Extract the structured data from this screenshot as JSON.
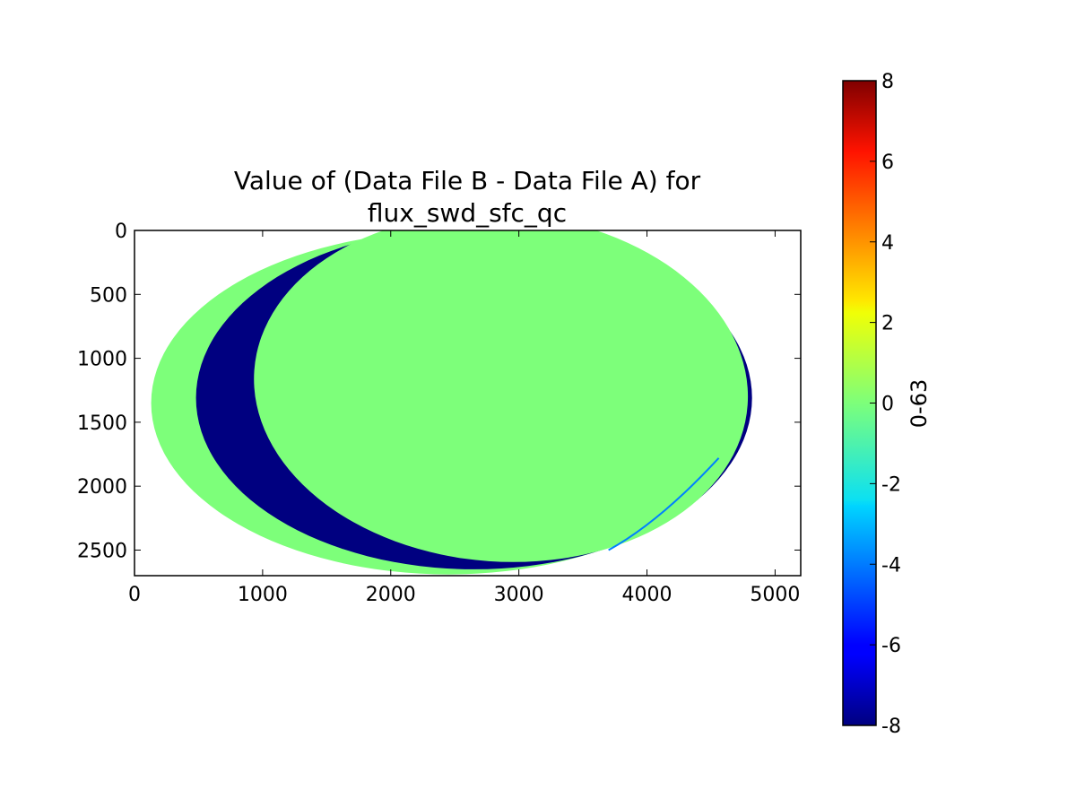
{
  "chart_data": {
    "type": "heatmap",
    "title_lines": [
      "Value of (Data File B - Data File A) for",
      "flux_swd_sfc_qc"
    ],
    "xlabel": "",
    "ylabel": "",
    "xlim": [
      0,
      5200
    ],
    "ylim": [
      2700,
      0
    ],
    "y_inverted": true,
    "x_ticks": [
      0,
      1000,
      2000,
      3000,
      4000,
      5000
    ],
    "y_ticks": [
      0,
      500,
      1000,
      1500,
      2000,
      2500
    ],
    "grid": false,
    "colormap": "jet",
    "colorbar": {
      "label": "0-63",
      "range": [
        -8,
        8
      ],
      "ticks": [
        -8,
        -6,
        -4,
        -2,
        0,
        2,
        4,
        6,
        8
      ]
    },
    "regions": [
      {
        "value": 0,
        "shape": "ellipse",
        "color": "#7dff7a",
        "center": [
          2450,
          1350
        ],
        "radii": [
          2320,
          1340
        ]
      },
      {
        "value": -8,
        "shape": "crescent",
        "color": "#000080",
        "outer_ellipse": {
          "center": [
            2650,
            1310
          ],
          "radii": [
            2170,
            1340
          ]
        },
        "inner_ellipse": {
          "center": [
            2860,
            1230
          ],
          "radii": [
            1930,
            1360
          ],
          "rotation_deg": 4
        }
      },
      {
        "value": 0,
        "shape": "ellipse",
        "color": "#7dff7a",
        "center": [
          2860,
          1230
        ],
        "radii": [
          1930,
          1360
        ],
        "rotation_deg": 4
      },
      {
        "value": -4,
        "shape": "arc_fringe",
        "color": "#0080ff",
        "description_points": [
          [
            3700,
            2500
          ],
          [
            4100,
            2280
          ],
          [
            4560,
            1780
          ]
        ]
      }
    ]
  }
}
